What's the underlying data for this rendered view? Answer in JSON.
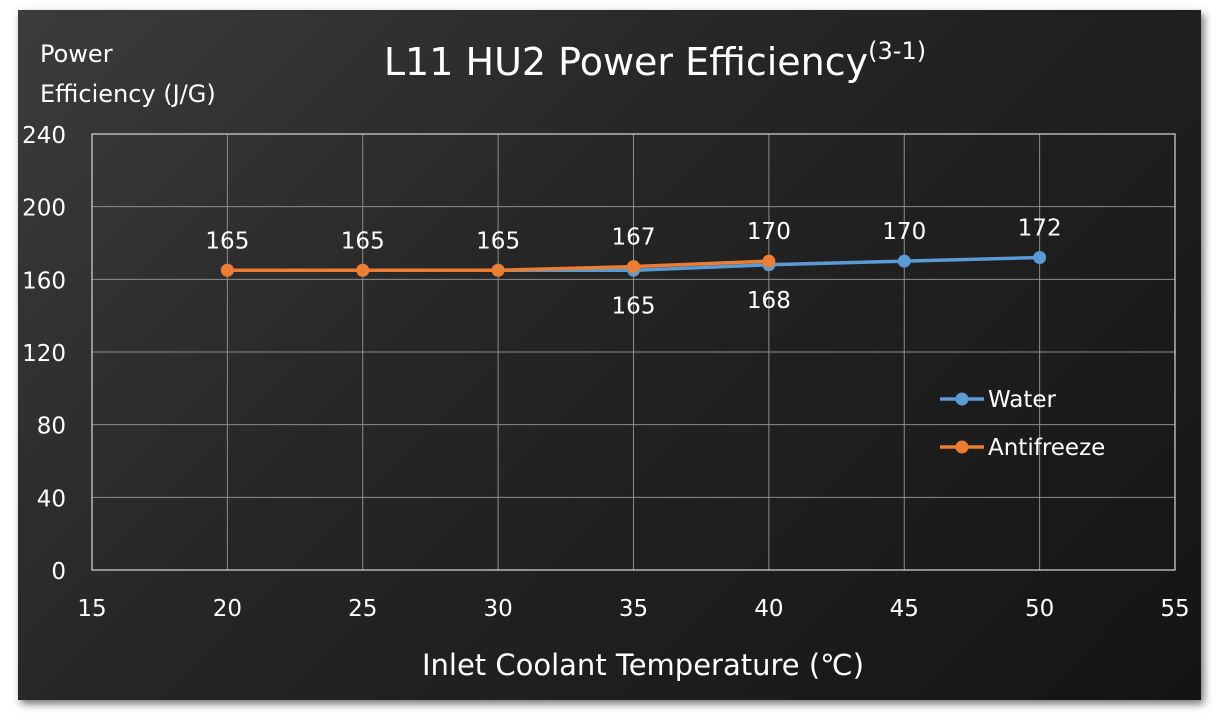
{
  "chart_data": {
    "type": "line",
    "title": "L11 HU2 Power Efficiency",
    "title_superscript": "(3-1)",
    "ylabel_line1": "Power",
    "ylabel_line2": "Efficiency (J/G)",
    "xlabel": "Inlet Coolant Temperature (℃)",
    "xlim": [
      15,
      55
    ],
    "ylim": [
      0,
      240
    ],
    "x_ticks": [
      15,
      20,
      25,
      30,
      35,
      40,
      45,
      50,
      55
    ],
    "y_ticks": [
      0,
      40,
      80,
      120,
      160,
      200,
      240
    ],
    "grid": true,
    "legend_position": "right",
    "series": [
      {
        "name": "Water",
        "color": "#5b9bd5",
        "x": [
          20,
          25,
          30,
          35,
          40,
          45,
          50
        ],
        "y": [
          165,
          165,
          165,
          165,
          168,
          170,
          172
        ],
        "labels": [
          "",
          "",
          "",
          "165",
          "168",
          "170",
          "172"
        ]
      },
      {
        "name": "Antifreeze",
        "color": "#ed7d31",
        "x": [
          20,
          25,
          30,
          35,
          40
        ],
        "y": [
          165,
          165,
          165,
          167,
          170
        ],
        "labels": [
          "165",
          "165",
          "165",
          "167",
          "170"
        ]
      }
    ]
  }
}
